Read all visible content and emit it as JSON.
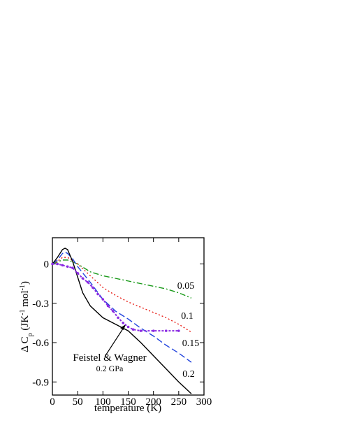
{
  "chart_data": {
    "type": "line",
    "xlabel": "temperature (K)",
    "ylabel": [
      "Δ C",
      "p",
      " (JK",
      "-1",
      " mol",
      "-1",
      ")"
    ],
    "xlim": [
      0,
      300
    ],
    "ylim": [
      -1.0,
      0.2
    ],
    "xticks": [
      0,
      50,
      100,
      150,
      200,
      250,
      300
    ],
    "yticks": [
      0,
      -0.3,
      -0.6,
      -0.9
    ],
    "series": [
      {
        "name": "0.05",
        "color": "#1a9a1a",
        "dash": "dashdot",
        "x": [
          0,
          20,
          30,
          50,
          75,
          100,
          125,
          150,
          175,
          200,
          225,
          250,
          275
        ],
        "values": [
          0,
          0.03,
          0.03,
          0.0,
          -0.06,
          -0.09,
          -0.11,
          -0.13,
          -0.15,
          -0.17,
          -0.19,
          -0.22,
          -0.26
        ]
      },
      {
        "name": "0.1",
        "color": "#e8221a",
        "dash": "dot",
        "x": [
          0,
          10,
          20,
          30,
          50,
          75,
          100,
          125,
          150,
          175,
          200,
          225,
          250,
          275
        ],
        "values": [
          0,
          0.02,
          0.05,
          0.05,
          0.0,
          -0.09,
          -0.18,
          -0.24,
          -0.29,
          -0.33,
          -0.37,
          -0.41,
          -0.46,
          -0.52
        ]
      },
      {
        "name": "0.15",
        "color": "#2244dd",
        "dash": "dash",
        "x": [
          0,
          10,
          20,
          25,
          30,
          40,
          50,
          75,
          100,
          125,
          150,
          175,
          200,
          225,
          250,
          275
        ],
        "values": [
          0,
          0.03,
          0.08,
          0.09,
          0.08,
          0.04,
          -0.02,
          -0.14,
          -0.27,
          -0.36,
          -0.42,
          -0.49,
          -0.55,
          -0.62,
          -0.68,
          -0.75
        ]
      },
      {
        "name": "0.2",
        "color": "#000000",
        "dash": "solid",
        "x": [
          0,
          10,
          20,
          25,
          30,
          40,
          50,
          60,
          75,
          100,
          125,
          150,
          175,
          200,
          225,
          250,
          275
        ],
        "values": [
          0,
          0.05,
          0.11,
          0.12,
          0.11,
          0.02,
          -0.1,
          -0.22,
          -0.32,
          -0.41,
          -0.46,
          -0.51,
          -0.6,
          -0.7,
          -0.8,
          -0.9,
          -0.99
        ]
      },
      {
        "color": "#8a2be2",
        "dash": "dots",
        "x": [
          0,
          10,
          20,
          30,
          40,
          50,
          60,
          70,
          80,
          90,
          100,
          110,
          120,
          130,
          140,
          150,
          160,
          175,
          200,
          225,
          250
        ],
        "values": [
          0,
          0.0,
          -0.01,
          -0.02,
          -0.03,
          -0.07,
          -0.11,
          -0.14,
          -0.18,
          -0.23,
          -0.27,
          -0.32,
          -0.36,
          -0.41,
          -0.45,
          -0.48,
          -0.5,
          -0.51,
          -0.51,
          -0.51,
          -0.51
        ]
      }
    ],
    "annotations": [
      "Feistel & Wagner",
      "0.2 GPa"
    ]
  }
}
